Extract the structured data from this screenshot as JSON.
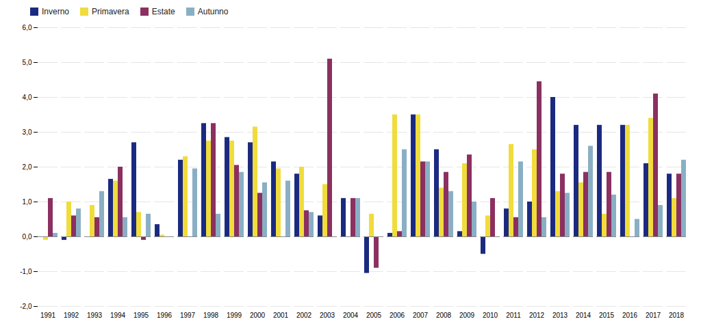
{
  "chart_data": {
    "type": "bar",
    "categories": [
      "1991",
      "1992",
      "1993",
      "1994",
      "1995",
      "1996",
      "1997",
      "1998",
      "1999",
      "2000",
      "2001",
      "2002",
      "2003",
      "2004",
      "2005",
      "2006",
      "2007",
      "2008",
      "2009",
      "2010",
      "2011",
      "2012",
      "2013",
      "2014",
      "2015",
      "2016",
      "2017",
      "2018"
    ],
    "series": [
      {
        "name": "Inverno",
        "color": "#1B2A80",
        "values": [
          0.0,
          -0.1,
          0.0,
          1.65,
          2.7,
          0.35,
          2.2,
          3.25,
          2.85,
          2.7,
          2.15,
          1.8,
          0.6,
          1.1,
          -1.05,
          0.1,
          3.5,
          2.5,
          0.15,
          -0.5,
          0.8,
          1.0,
          4.0,
          3.2,
          3.2,
          3.2,
          2.1,
          1.8
        ]
      },
      {
        "name": "Primavera",
        "color": "#F0DC3C",
        "values": [
          -0.1,
          1.0,
          0.9,
          1.6,
          0.7,
          0.05,
          2.3,
          2.75,
          2.75,
          3.15,
          1.95,
          2.0,
          1.5,
          0.0,
          0.65,
          3.5,
          3.5,
          1.4,
          2.1,
          0.6,
          2.65,
          2.5,
          1.3,
          1.55,
          0.65,
          3.2,
          3.4,
          1.1
        ]
      },
      {
        "name": "Estate",
        "color": "#8B3060",
        "values": [
          1.1,
          0.6,
          0.55,
          2.0,
          -0.1,
          0.0,
          0.0,
          3.25,
          2.05,
          1.25,
          0.0,
          0.75,
          5.1,
          1.1,
          -0.9,
          0.15,
          2.15,
          1.85,
          2.35,
          1.1,
          0.55,
          4.45,
          1.8,
          1.85,
          1.85,
          0.0,
          4.1,
          1.8
        ]
      },
      {
        "name": "Autunno",
        "color": "#8AAFC4",
        "values": [
          0.1,
          0.8,
          1.3,
          0.55,
          0.65,
          0.0,
          1.95,
          0.65,
          1.85,
          1.55,
          1.6,
          0.7,
          0.0,
          1.1,
          0.0,
          2.5,
          2.15,
          1.3,
          1.0,
          0.0,
          2.15,
          0.55,
          1.25,
          2.6,
          1.2,
          0.5,
          0.9,
          2.2
        ]
      }
    ],
    "ylim": [
      -2.0,
      6.0
    ],
    "yticks": [
      {
        "value": -2.0,
        "label": "-2,0"
      },
      {
        "value": -1.0,
        "label": "-1,0"
      },
      {
        "value": 0.0,
        "label": "0,0"
      },
      {
        "value": 1.0,
        "label": "1,0"
      },
      {
        "value": 2.0,
        "label": "2,0"
      },
      {
        "value": 3.0,
        "label": "3,0"
      },
      {
        "value": 4.0,
        "label": "4,0"
      },
      {
        "value": 5.0,
        "label": "5,0"
      },
      {
        "value": 6.0,
        "label": "6,0"
      }
    ],
    "grid": true,
    "legend": "upper left"
  }
}
